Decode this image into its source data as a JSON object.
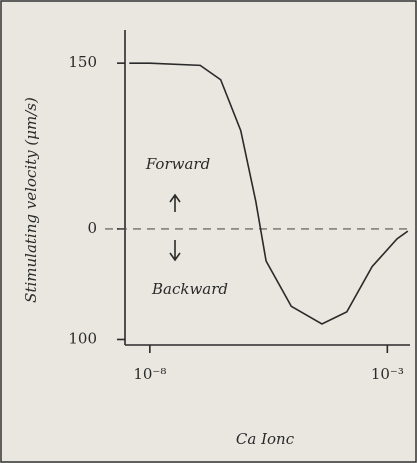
{
  "chart_data": {
    "type": "line",
    "y_label": "Stimulating velocity (μm/s)",
    "x_label": "Ca Ionc",
    "annotations": [
      "Forward",
      "Backward"
    ],
    "log_x": true,
    "zero_line": true,
    "color": "#333333",
    "xlim": [
      3e-09,
      0.003
    ],
    "ylim": [
      -105,
      180
    ],
    "xticks": [
      {
        "value": 1e-08,
        "label": "10⁻⁸"
      },
      {
        "value": 0.001,
        "label": "10⁻³"
      }
    ],
    "yticks": [
      {
        "value": -100,
        "label": "100"
      },
      0,
      150
    ],
    "x": [
      3.7e-09,
      1e-08,
      1.15e-07,
      3.1e-07,
      8.2e-07,
      1.7e-06,
      2.8e-06,
      9.5e-06,
      4.2e-05,
      0.00014,
      0.00048,
      0.0016,
      0.0027
    ],
    "values": [
      150,
      150,
      148,
      135,
      89,
      25,
      -29,
      -70,
      -86,
      -75,
      -34,
      -9,
      -2
    ]
  }
}
